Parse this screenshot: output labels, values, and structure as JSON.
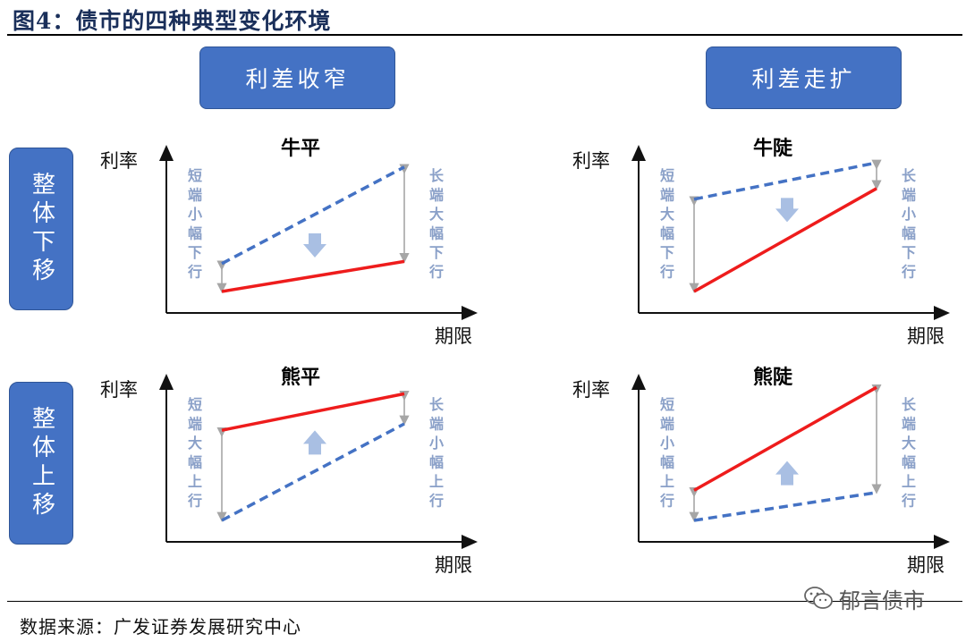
{
  "title": "图4：债市的四种典型变化环境",
  "source": "数据来源：广发证券发展研究中心",
  "watermark": "郁言债市",
  "columns": [
    "利差收窄",
    "利差走扩"
  ],
  "rows": [
    "整体下移",
    "整体上移"
  ],
  "axis": {
    "y_label": "利率",
    "x_label": "期限"
  },
  "colors": {
    "box": "#4472c4",
    "solid_line": "#ee1c1c",
    "dashed_line": "#4472c4",
    "bracket": "#a6a6a6",
    "arrow": "#a9bfe3",
    "side_text": "#8aa0c8"
  },
  "panels": [
    {
      "title": "牛平",
      "left_note": "短端小幅下行",
      "right_note": "长端大幅下行",
      "move_arrow": "down",
      "solid_line": {
        "short": 1.0,
        "long": 2.4
      },
      "dashed_line": {
        "short": 2.3,
        "long": 6.8
      }
    },
    {
      "title": "牛陡",
      "left_note": "短端大幅下行",
      "right_note": "长端小幅下行",
      "move_arrow": "down",
      "solid_line": {
        "short": 1.0,
        "long": 5.8
      },
      "dashed_line": {
        "short": 5.3,
        "long": 7.0
      }
    },
    {
      "title": "熊平",
      "left_note": "短端大幅上行",
      "right_note": "长端小幅上行",
      "move_arrow": "up",
      "solid_line": {
        "short": 5.2,
        "long": 6.9
      },
      "dashed_line": {
        "short": 1.0,
        "long": 5.5
      }
    },
    {
      "title": "熊陡",
      "left_note": "短端小幅上行",
      "right_note": "长端大幅上行",
      "move_arrow": "up",
      "solid_line": {
        "short": 2.4,
        "long": 7.2
      },
      "dashed_line": {
        "short": 1.0,
        "long": 2.3
      }
    }
  ]
}
